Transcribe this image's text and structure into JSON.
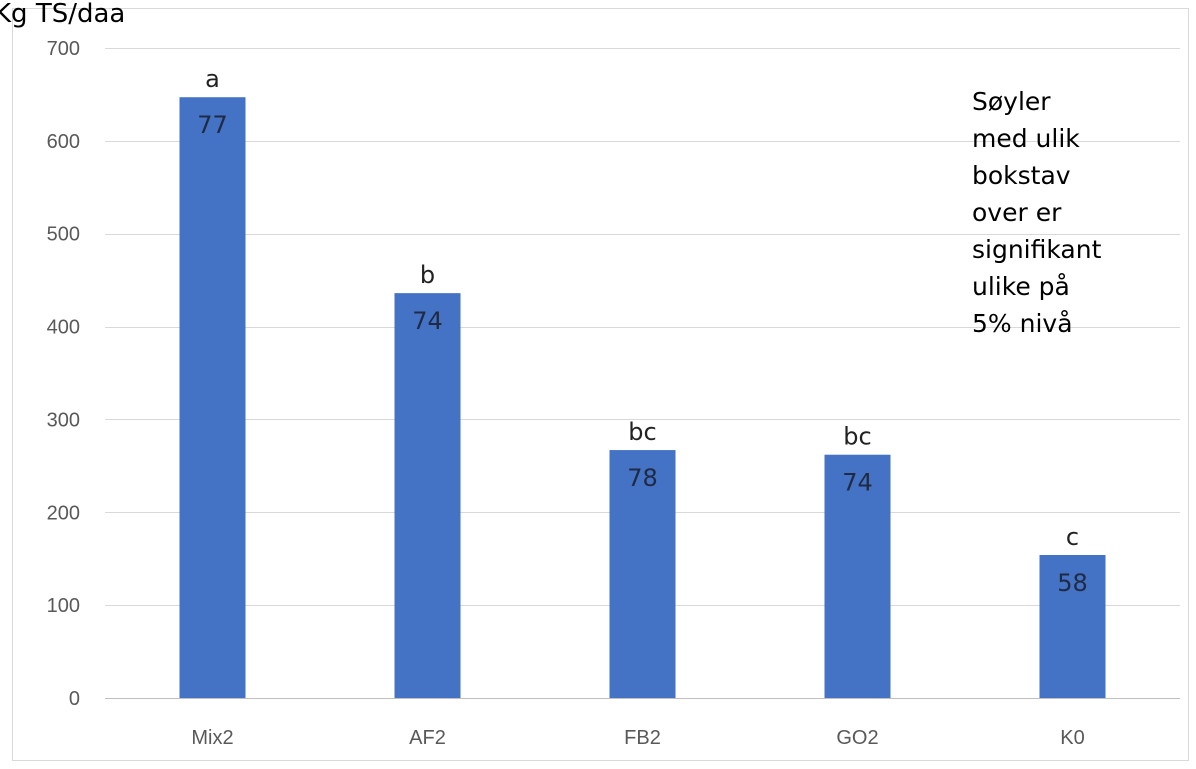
{
  "chart_data": {
    "type": "bar",
    "ylabel": "Kg TS/daa",
    "xlabel": "",
    "ylim": [
      0,
      700
    ],
    "yticks": [
      0,
      100,
      200,
      300,
      400,
      500,
      600,
      700
    ],
    "grid": true,
    "categories": [
      "Mix2",
      "AF2",
      "FB2",
      "GO2",
      "K0"
    ],
    "values": [
      647,
      436,
      267,
      262,
      154
    ],
    "bar_labels": [
      "77",
      "74",
      "78",
      "74",
      "58"
    ],
    "significance_letters": [
      "a",
      "b",
      "bc",
      "bc",
      "c"
    ],
    "bar_color": "#4472c4",
    "annotation": [
      "Søyler",
      "med ulik",
      "bokstav",
      "over er",
      "signifikant",
      "ulike på",
      "5% nivå"
    ]
  }
}
